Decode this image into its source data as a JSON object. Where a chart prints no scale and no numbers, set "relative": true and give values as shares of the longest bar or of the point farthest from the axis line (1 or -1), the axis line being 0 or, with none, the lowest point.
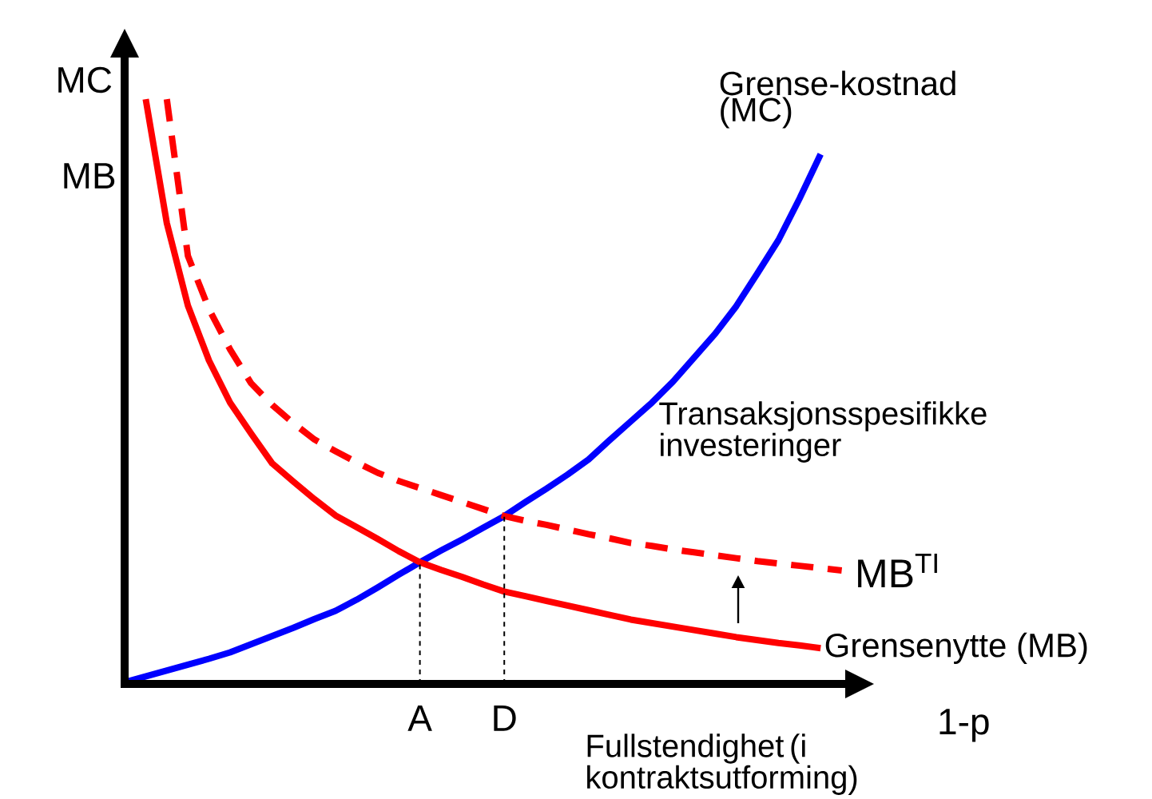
{
  "chart_data": {
    "type": "line",
    "relative": true,
    "ylabel": "MC",
    "xlabel": "1-p",
    "categories": [
      null,
      null,
      null,
      null,
      null,
      null,
      null,
      null,
      null,
      null,
      null,
      null,
      null,
      null,
      "A",
      null,
      null,
      null,
      "D",
      null,
      null,
      null,
      null,
      null,
      null,
      null,
      null,
      null,
      null,
      null,
      null,
      null,
      null,
      null,
      null
    ],
    "annotations": [
      "MB",
      "Transaksjonsspesifikke investeringer",
      "Fullstendighet (i kontraktsutforming)"
    ],
    "series": [
      {
        "name": "Grense-kostnad (MC)",
        "color": "#0000ff",
        "values": [
          0.003,
          0.013,
          0.023,
          0.033,
          0.043,
          0.054,
          0.068,
          0.082,
          0.096,
          0.111,
          0.125,
          0.144,
          0.165,
          0.187,
          0.208,
          0.228,
          0.247,
          0.267,
          0.287,
          0.311,
          0.334,
          0.358,
          0.384,
          0.417,
          0.449,
          0.481,
          0.517,
          0.558,
          0.599,
          0.646,
          0.702,
          0.759,
          0.83,
          0.906,
          null
        ]
      },
      {
        "name": "Grensenytte (MB)",
        "color": "#ff0000",
        "values": [
          null,
          1.0,
          0.788,
          0.647,
          0.553,
          0.481,
          0.428,
          0.377,
          0.346,
          0.316,
          0.288,
          0.268,
          0.248,
          0.227,
          0.208,
          0.195,
          0.183,
          0.17,
          0.158,
          0.15,
          0.142,
          0.134,
          0.126,
          0.118,
          0.11,
          0.104,
          0.098,
          0.092,
          0.086,
          0.08,
          0.075,
          0.07,
          0.066,
          0.061,
          null
        ]
      },
      {
        "name": "MB$^{TI}$",
        "color": "#ff0000",
        "line_style": "dashed",
        "values": [
          null,
          null,
          1.0,
          0.732,
          0.641,
          0.572,
          0.514,
          0.477,
          0.446,
          0.418,
          0.398,
          0.379,
          0.361,
          0.347,
          0.335,
          0.323,
          0.311,
          0.299,
          0.287,
          0.279,
          0.272,
          0.264,
          0.256,
          0.249,
          0.241,
          0.236,
          0.23,
          0.225,
          0.22,
          0.215,
          0.21,
          0.206,
          0.202,
          0.198,
          0.194
        ]
      }
    ],
    "ref_lines": [
      {
        "axis": "x",
        "value": "A",
        "line_style": "dashed",
        "color": "#000000"
      },
      {
        "axis": "x",
        "value": "D",
        "line_style": "dashed",
        "color": "#000000"
      }
    ]
  }
}
